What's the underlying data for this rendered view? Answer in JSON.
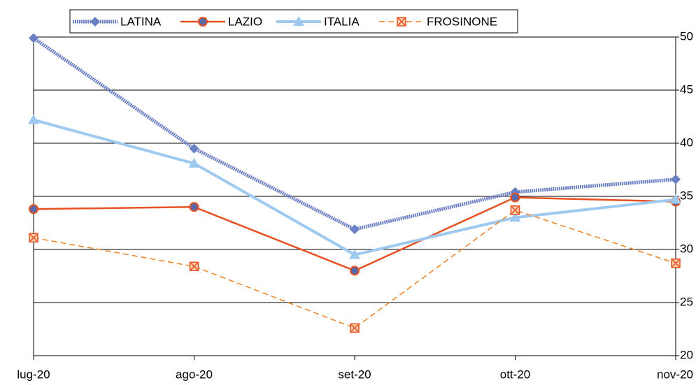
{
  "chart_data": {
    "type": "line",
    "categories": [
      "lug-20",
      "ago-20",
      "set-20",
      "ott-20",
      "nov-20"
    ],
    "series": [
      {
        "name": "LATINA",
        "color": "#6b7fc4",
        "marker": "diamond",
        "line_style": "dotted",
        "width": 5,
        "values": [
          49.9,
          39.5,
          31.9,
          35.4,
          36.6
        ]
      },
      {
        "name": "LAZIO",
        "color": "#e8501f",
        "marker": "circle",
        "line_style": "solid",
        "width": 2.5,
        "values": [
          33.8,
          34.0,
          28.0,
          34.9,
          34.5
        ]
      },
      {
        "name": "ITALIA",
        "color": "#9ec9f0",
        "marker": "triangle",
        "line_style": "solid",
        "width": 4,
        "values": [
          42.2,
          38.1,
          29.5,
          33.0,
          34.7
        ]
      },
      {
        "name": "FROSINONE",
        "color": "#f08020",
        "marker": "square-x",
        "line_style": "dashed",
        "width": 1.5,
        "values": [
          31.1,
          28.4,
          22.6,
          33.7,
          28.7
        ]
      }
    ],
    "ylim": [
      20,
      50
    ],
    "yticks": [
      20,
      25,
      30,
      35,
      40,
      45,
      50
    ],
    "y_axis_side": "right",
    "grid": true,
    "legend": "top"
  }
}
